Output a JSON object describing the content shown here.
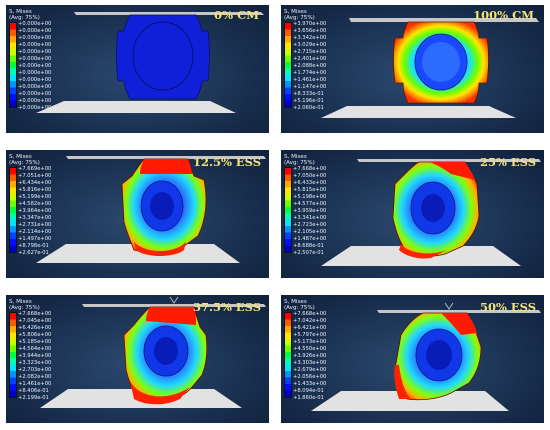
{
  "legend_heading": "S, Mises",
  "legend_sub": "(Avg: 75%)",
  "panels": [
    {
      "label": "0% CM",
      "values": [
        "+0.000e+00",
        "+0.000e+00",
        "+0.000e+00",
        "+0.000e+00",
        "+0.000e+00",
        "+0.000e+00",
        "+0.000e+00",
        "+0.000e+00",
        "+0.000e+00",
        "+0.000e+00",
        "+0.000e+00",
        "+0.000e+00",
        "+0.000e+00"
      ]
    },
    {
      "label": "100% CM",
      "values": [
        "+3.970e+00",
        "+3.656e+00",
        "+3.342e+00",
        "+3.029e+00",
        "+2.715e+00",
        "+2.401e+00",
        "+2.088e+00",
        "+1.774e+00",
        "+1.461e+00",
        "+1.147e+00",
        "+8.333e-01",
        "+5.196e-01",
        "+2.060e-01"
      ]
    },
    {
      "label": "12.5% ESS",
      "values": [
        "+7.669e+00",
        "+7.051e+00",
        "+6.434e+00",
        "+5.816e+00",
        "+5.199e+00",
        "+4.582e+00",
        "+3.964e+00",
        "+3.347e+00",
        "+2.731e+00",
        "+2.114e+00",
        "+1.497e+00",
        "+8.798e-01",
        "+2.627e-01"
      ]
    },
    {
      "label": "25% ESS",
      "values": [
        "+7.668e+00",
        "+7.050e+00",
        "+6.433e+00",
        "+5.815e+00",
        "+5.198e+00",
        "+4.577e+00",
        "+3.959e+00",
        "+3.341e+00",
        "+2.723e+00",
        "+2.105e+00",
        "+1.487e+00",
        "+8.688e-01",
        "+2.507e-01"
      ]
    },
    {
      "label": "37.5% ESS",
      "values": [
        "+7.668e+00",
        "+7.045e+00",
        "+6.426e+00",
        "+5.806e+00",
        "+5.185e+00",
        "+4.564e+00",
        "+3.944e+00",
        "+3.323e+00",
        "+2.703e+00",
        "+2.082e+00",
        "+1.461e+00",
        "+8.406e-01",
        "+2.199e-01"
      ]
    },
    {
      "label": "50% ESS",
      "values": [
        "+7.668e+00",
        "+7.042e+00",
        "+6.421e+00",
        "+5.797e+00",
        "+5.173e+00",
        "+4.550e+00",
        "+3.926e+00",
        "+3.303e+00",
        "+2.679e+00",
        "+2.056e+00",
        "+1.433e+00",
        "+8.094e-01",
        "+1.860e-01"
      ]
    }
  ],
  "colors": {
    "legend_scale": [
      "#ff0000",
      "#ff5a00",
      "#ffa800",
      "#ffe600",
      "#c8ff00",
      "#6aff00",
      "#00ff3c",
      "#00ffb0",
      "#00e4ff",
      "#0094ff",
      "#0044ff",
      "#0010ff",
      "#0000c8"
    ],
    "panel_bg": "#1b3253",
    "label_color": "#f3e37a",
    "plate": "#dcdcdc"
  }
}
